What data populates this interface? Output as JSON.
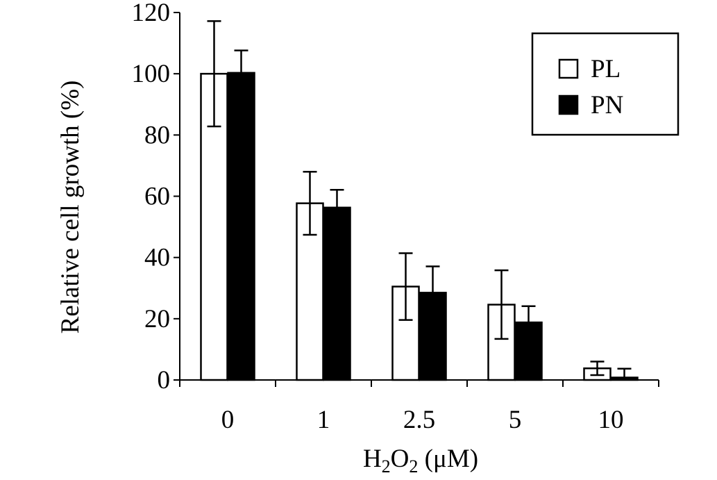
{
  "chart_data": {
    "type": "bar",
    "categories": [
      "0",
      "1",
      "2.5",
      "5",
      "10"
    ],
    "series": [
      {
        "name": "PL",
        "color": "#ffffff",
        "values": [
          100,
          57.7,
          30.5,
          24.6,
          3.8
        ],
        "errors": [
          17.2,
          10.3,
          10.9,
          11.2,
          2.2
        ]
      },
      {
        "name": "PN",
        "color": "#000000",
        "values": [
          100.3,
          56.3,
          28.5,
          18.8,
          0.8
        ],
        "errors": [
          7.3,
          5.8,
          8.6,
          5.3,
          2.9
        ]
      }
    ],
    "ylim": [
      0,
      120
    ],
    "yticks": [
      "0",
      "20",
      "40",
      "60",
      "80",
      "100",
      "120"
    ],
    "ylabel": "Relative  cell growth  (%)",
    "xlabel": {
      "prefix": "H",
      "sub1": "2",
      "middle": "O",
      "sub2": "2",
      "suffix": " (μM)"
    },
    "legend": "top-right",
    "grid": false
  }
}
